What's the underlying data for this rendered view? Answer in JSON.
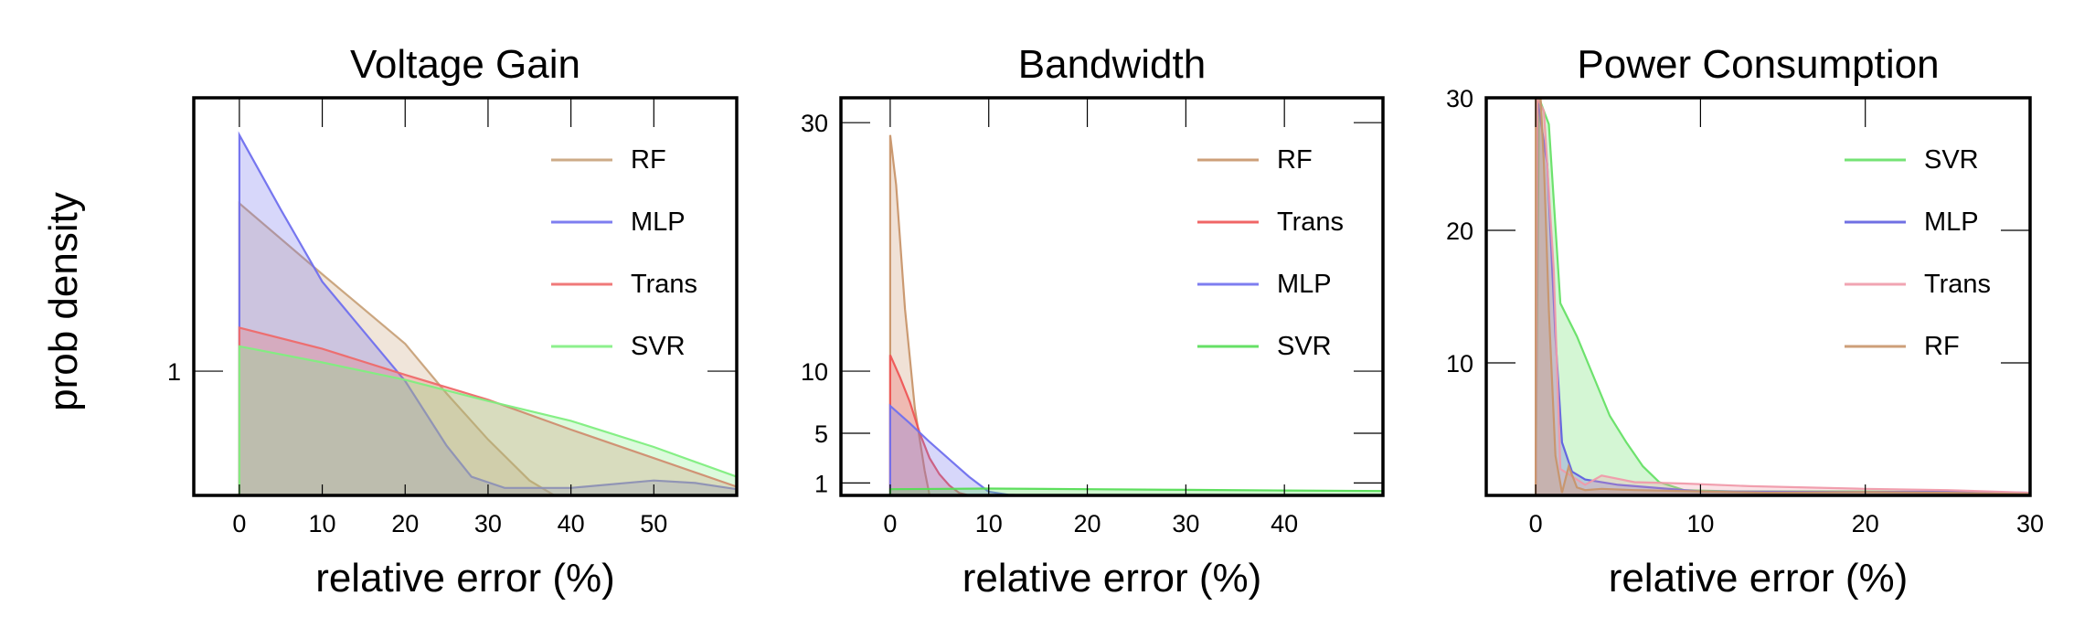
{
  "figure": {
    "ylabel": "prob density"
  },
  "chart_data": [
    {
      "type": "area",
      "title": "Voltage Gain",
      "xlabel": "relative error (%)",
      "ylabel": "prob density",
      "xlim": [
        -5.5,
        60
      ],
      "ylim": [
        0,
        3.2
      ],
      "xticks": [
        0,
        10,
        20,
        30,
        40,
        50
      ],
      "yticks": [
        1
      ],
      "legend_position": "top-right",
      "series": [
        {
          "name": "RF",
          "color": "#c8a27a",
          "points": [
            [
              0,
              0
            ],
            [
              0,
              2.35
            ],
            [
              10,
              1.78
            ],
            [
              20,
              1.22
            ],
            [
              25,
              0.82
            ],
            [
              30,
              0.45
            ],
            [
              35,
              0.12
            ],
            [
              38,
              0
            ]
          ]
        },
        {
          "name": "MLP",
          "color": "#7070ee",
          "points": [
            [
              0,
              0
            ],
            [
              0,
              2.9
            ],
            [
              5,
              2.3
            ],
            [
              10,
              1.72
            ],
            [
              15,
              1.32
            ],
            [
              20,
              0.92
            ],
            [
              25,
              0.4
            ],
            [
              28,
              0.15
            ],
            [
              32,
              0.06
            ],
            [
              40,
              0.06
            ],
            [
              50,
              0.12
            ],
            [
              55,
              0.1
            ],
            [
              60,
              0.05
            ]
          ]
        },
        {
          "name": "Trans",
          "color": "#ee6a6a",
          "points": [
            [
              0,
              0
            ],
            [
              0,
              1.35
            ],
            [
              10,
              1.18
            ],
            [
              20,
              0.97
            ],
            [
              30,
              0.77
            ],
            [
              40,
              0.53
            ],
            [
              50,
              0.3
            ],
            [
              60,
              0.07
            ]
          ]
        },
        {
          "name": "SVR",
          "color": "#80ee80",
          "points": [
            [
              0,
              0
            ],
            [
              0,
              1.2
            ],
            [
              10,
              1.07
            ],
            [
              20,
              0.93
            ],
            [
              30,
              0.76
            ],
            [
              40,
              0.6
            ],
            [
              50,
              0.39
            ],
            [
              60,
              0.15
            ]
          ]
        }
      ]
    },
    {
      "type": "area",
      "title": "Bandwidth",
      "xlabel": "relative error (%)",
      "ylabel": "",
      "xlim": [
        -5,
        50
      ],
      "ylim": [
        0,
        32
      ],
      "xticks": [
        0,
        10,
        20,
        30,
        40
      ],
      "yticks": [
        1,
        5,
        10,
        30
      ],
      "legend_position": "top-right",
      "series": [
        {
          "name": "RF",
          "color": "#c8956a",
          "points": [
            [
              0,
              0
            ],
            [
              0,
              29
            ],
            [
              0.6,
              25
            ],
            [
              1.5,
              15
            ],
            [
              2.5,
              7
            ],
            [
              3.5,
              2
            ],
            [
              4,
              0
            ]
          ]
        },
        {
          "name": "Trans",
          "color": "#ee5555",
          "points": [
            [
              0,
              0
            ],
            [
              0,
              11.3
            ],
            [
              1,
              9.5
            ],
            [
              2,
              7.5
            ],
            [
              3,
              5
            ],
            [
              4,
              3
            ],
            [
              5,
              1.7
            ],
            [
              6,
              0.8
            ],
            [
              7,
              0.2
            ],
            [
              8,
              0
            ]
          ]
        },
        {
          "name": "MLP",
          "color": "#7070ee",
          "points": [
            [
              0,
              0
            ],
            [
              0,
              7.2
            ],
            [
              2,
              5.8
            ],
            [
              4,
              4.3
            ],
            [
              6,
              2.9
            ],
            [
              8,
              1.5
            ],
            [
              10,
              0.3
            ],
            [
              12,
              0.05
            ],
            [
              14,
              0
            ]
          ]
        },
        {
          "name": "SVR",
          "color": "#55dd55",
          "points": [
            [
              0,
              0
            ],
            [
              0,
              0.5
            ],
            [
              10,
              0.55
            ],
            [
              20,
              0.5
            ],
            [
              30,
              0.45
            ],
            [
              40,
              0.4
            ],
            [
              50,
              0.35
            ],
            [
              50,
              0
            ]
          ]
        }
      ]
    },
    {
      "type": "area",
      "title": "Power Consumption",
      "xlabel": "relative error (%)",
      "ylabel": "",
      "xlim": [
        -3,
        30
      ],
      "ylim": [
        0,
        30
      ],
      "xticks": [
        0,
        10,
        20,
        30
      ],
      "yticks": [
        10,
        20,
        30
      ],
      "legend_position": "top-right",
      "series": [
        {
          "name": "SVR",
          "color": "#66e066",
          "points": [
            [
              0,
              0
            ],
            [
              0.2,
              30
            ],
            [
              0.8,
              28
            ],
            [
              1.5,
              14.5
            ],
            [
              2.5,
              12
            ],
            [
              3.5,
              9
            ],
            [
              4.5,
              6
            ],
            [
              5.5,
              4
            ],
            [
              6.5,
              2.2
            ],
            [
              7.5,
              1
            ],
            [
              9,
              0.4
            ],
            [
              12,
              0.3
            ],
            [
              20,
              0.3
            ],
            [
              30,
              0.2
            ],
            [
              30,
              0
            ]
          ]
        },
        {
          "name": "MLP",
          "color": "#6060e0",
          "points": [
            [
              0,
              0
            ],
            [
              0.1,
              30
            ],
            [
              0.7,
              25
            ],
            [
              1.2,
              12
            ],
            [
              1.6,
              4
            ],
            [
              2.2,
              1.8
            ],
            [
              3,
              1.2
            ],
            [
              5,
              0.8
            ],
            [
              10,
              0.3
            ],
            [
              20,
              0.25
            ],
            [
              25,
              0.3
            ],
            [
              30,
              0.2
            ],
            [
              30,
              0
            ]
          ]
        },
        {
          "name": "Trans",
          "color": "#f09aaa",
          "points": [
            [
              0,
              0
            ],
            [
              0.1,
              30
            ],
            [
              0.5,
              29
            ],
            [
              1.1,
              17
            ],
            [
              1.5,
              2
            ],
            [
              3,
              0.8
            ],
            [
              4,
              1.5
            ],
            [
              6,
              1
            ],
            [
              9,
              0.9
            ],
            [
              13,
              0.7
            ],
            [
              20,
              0.5
            ],
            [
              25,
              0.4
            ],
            [
              30,
              0.2
            ],
            [
              30,
              0
            ]
          ]
        },
        {
          "name": "RF",
          "color": "#c8956a",
          "points": [
            [
              0,
              0
            ],
            [
              0,
              30
            ],
            [
              0.3,
              30
            ],
            [
              0.5,
              25
            ],
            [
              0.8,
              14
            ],
            [
              1.2,
              3
            ],
            [
              1.6,
              0.2
            ],
            [
              2,
              2.2
            ],
            [
              2.5,
              0.6
            ],
            [
              3,
              0.4
            ],
            [
              4,
              0.5
            ],
            [
              6,
              0.4
            ],
            [
              10,
              0.3
            ],
            [
              14,
              0.2
            ],
            [
              20,
              0.25
            ],
            [
              25,
              0.2
            ],
            [
              30,
              0.1
            ],
            [
              30,
              0
            ]
          ]
        }
      ]
    }
  ]
}
